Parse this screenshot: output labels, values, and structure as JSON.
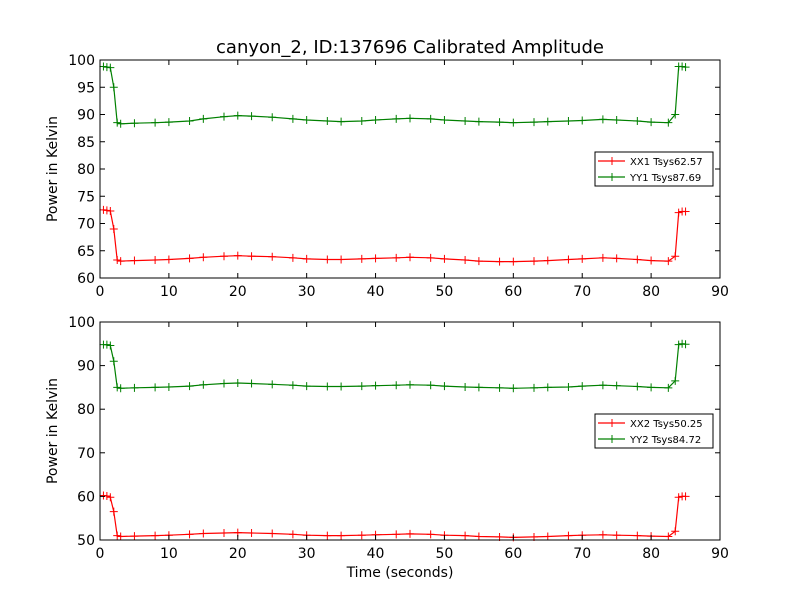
{
  "title": "canyon_2, ID:137696 Calibrated Amplitude",
  "chart_data": [
    {
      "type": "line",
      "title": "canyon_2, ID:137696 Calibrated Amplitude",
      "xlabel": "",
      "ylabel": "Power in Kelvin",
      "xlim": [
        0,
        90
      ],
      "ylim": [
        60,
        100
      ],
      "xticks": [
        0,
        10,
        20,
        30,
        40,
        50,
        60,
        70,
        80,
        90
      ],
      "yticks": [
        60,
        65,
        70,
        75,
        80,
        85,
        90,
        95,
        100
      ],
      "grid": false,
      "legend_position": "right",
      "series": [
        {
          "name": "XX1 Tsys62.57",
          "color": "#ff0000",
          "marker": "plus",
          "x": [
            0.5,
            1.0,
            1.5,
            2.0,
            2.5,
            3,
            5,
            8,
            10,
            13,
            15,
            18,
            20,
            22,
            25,
            28,
            30,
            33,
            35,
            38,
            40,
            43,
            45,
            48,
            50,
            53,
            55,
            58,
            60,
            63,
            65,
            68,
            70,
            73,
            75,
            78,
            80,
            82.5,
            83.5,
            84.0,
            84.5,
            85.0
          ],
          "y": [
            72.5,
            72.4,
            72.3,
            69.0,
            63.3,
            63.1,
            63.2,
            63.3,
            63.4,
            63.6,
            63.8,
            64.0,
            64.1,
            64.0,
            63.9,
            63.7,
            63.5,
            63.4,
            63.4,
            63.5,
            63.6,
            63.7,
            63.8,
            63.7,
            63.5,
            63.3,
            63.1,
            63.0,
            63.0,
            63.1,
            63.2,
            63.4,
            63.5,
            63.7,
            63.6,
            63.4,
            63.2,
            63.1,
            64.0,
            72.0,
            72.2,
            72.2
          ]
        },
        {
          "name": "YY1 Tsys87.69",
          "color": "#008000",
          "marker": "plus",
          "x": [
            0.5,
            1.0,
            1.5,
            2.0,
            2.5,
            3,
            5,
            8,
            10,
            13,
            15,
            18,
            20,
            22,
            25,
            28,
            30,
            33,
            35,
            38,
            40,
            43,
            45,
            48,
            50,
            53,
            55,
            58,
            60,
            63,
            65,
            68,
            70,
            73,
            75,
            78,
            80,
            82.5,
            83.5,
            84.0,
            84.5,
            85.0
          ],
          "y": [
            98.8,
            98.7,
            98.6,
            95.0,
            88.5,
            88.3,
            88.4,
            88.5,
            88.6,
            88.8,
            89.2,
            89.6,
            89.8,
            89.7,
            89.5,
            89.2,
            89.0,
            88.8,
            88.7,
            88.8,
            89.0,
            89.2,
            89.3,
            89.2,
            89.0,
            88.8,
            88.7,
            88.6,
            88.5,
            88.6,
            88.7,
            88.8,
            88.9,
            89.1,
            89.0,
            88.8,
            88.6,
            88.5,
            90.0,
            98.8,
            98.8,
            98.7
          ]
        }
      ]
    },
    {
      "type": "line",
      "title": "",
      "xlabel": "Time (seconds)",
      "ylabel": "Power in Kelvin",
      "xlim": [
        0,
        90
      ],
      "ylim": [
        50,
        100
      ],
      "xticks": [
        0,
        10,
        20,
        30,
        40,
        50,
        60,
        70,
        80,
        90
      ],
      "yticks": [
        50,
        60,
        70,
        80,
        90,
        100
      ],
      "grid": false,
      "legend_position": "right",
      "series": [
        {
          "name": "XX2 Tsys50.25",
          "color": "#ff0000",
          "marker": "plus",
          "x": [
            0.5,
            1.0,
            1.5,
            2.0,
            2.5,
            3,
            5,
            8,
            10,
            13,
            15,
            18,
            20,
            22,
            25,
            28,
            30,
            33,
            35,
            38,
            40,
            43,
            45,
            48,
            50,
            53,
            55,
            58,
            60,
            63,
            65,
            68,
            70,
            73,
            75,
            78,
            80,
            82.5,
            83.5,
            84.0,
            84.5,
            85.0
          ],
          "y": [
            60.2,
            60.1,
            59.8,
            56.5,
            51.0,
            50.8,
            50.9,
            51.0,
            51.1,
            51.3,
            51.5,
            51.6,
            51.7,
            51.6,
            51.5,
            51.3,
            51.1,
            51.0,
            51.0,
            51.1,
            51.2,
            51.3,
            51.4,
            51.3,
            51.1,
            51.0,
            50.8,
            50.7,
            50.6,
            50.7,
            50.8,
            51.0,
            51.1,
            51.2,
            51.1,
            51.0,
            50.9,
            50.8,
            52.0,
            59.8,
            60.0,
            60.0
          ]
        },
        {
          "name": "YY2 Tsys84.72",
          "color": "#008000",
          "marker": "plus",
          "x": [
            0.5,
            1.0,
            1.5,
            2.0,
            2.5,
            3,
            5,
            8,
            10,
            13,
            15,
            18,
            20,
            22,
            25,
            28,
            30,
            33,
            35,
            38,
            40,
            43,
            45,
            48,
            50,
            53,
            55,
            58,
            60,
            63,
            65,
            68,
            70,
            73,
            75,
            78,
            80,
            82.5,
            83.5,
            84.0,
            84.5,
            85.0
          ],
          "y": [
            94.8,
            94.8,
            94.6,
            91.0,
            85.0,
            84.8,
            84.9,
            85.0,
            85.1,
            85.3,
            85.6,
            85.9,
            86.0,
            85.9,
            85.7,
            85.5,
            85.3,
            85.2,
            85.2,
            85.3,
            85.4,
            85.5,
            85.6,
            85.5,
            85.3,
            85.1,
            85.0,
            84.9,
            84.8,
            84.9,
            85.0,
            85.1,
            85.3,
            85.5,
            85.4,
            85.2,
            85.0,
            84.9,
            86.5,
            94.8,
            95.0,
            94.9
          ]
        }
      ]
    }
  ]
}
